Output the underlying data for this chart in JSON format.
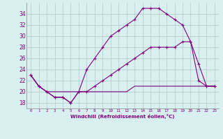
{
  "xlabel": "Windchill (Refroidissement éolien,°C)",
  "background_color": "#d8f0f0",
  "grid_color": "#b0c8c8",
  "line_color": "#800080",
  "x_hours": [
    0,
    1,
    2,
    3,
    4,
    5,
    6,
    7,
    8,
    9,
    10,
    11,
    12,
    13,
    14,
    15,
    16,
    17,
    18,
    19,
    20,
    21,
    22,
    23
  ],
  "line1": [
    23,
    21,
    20,
    19,
    19,
    18,
    20,
    24,
    26,
    28,
    30,
    31,
    32,
    33,
    35,
    35,
    35,
    34,
    33,
    32,
    29,
    22,
    21,
    21
  ],
  "line2": [
    23,
    21,
    20,
    19,
    19,
    18,
    20,
    20,
    21,
    22,
    23,
    24,
    25,
    26,
    27,
    28,
    28,
    28,
    28,
    29,
    29,
    25,
    21,
    21
  ],
  "line3": [
    23,
    21,
    20,
    20,
    20,
    20,
    20,
    20,
    20,
    20,
    20,
    20,
    20,
    21,
    21,
    21,
    21,
    21,
    21,
    21,
    21,
    21,
    21,
    21
  ],
  "ylim": [
    17,
    36
  ],
  "yticks": [
    18,
    20,
    22,
    24,
    26,
    28,
    30,
    32,
    34
  ],
  "xtick_labels": [
    "0",
    "1",
    "2",
    "3",
    "4",
    "5",
    "6",
    "7",
    "8",
    "9",
    "10",
    "11",
    "12",
    "13",
    "14",
    "15",
    "16",
    "17",
    "18",
    "19",
    "20",
    "21",
    "22",
    "23"
  ],
  "marker": "+"
}
